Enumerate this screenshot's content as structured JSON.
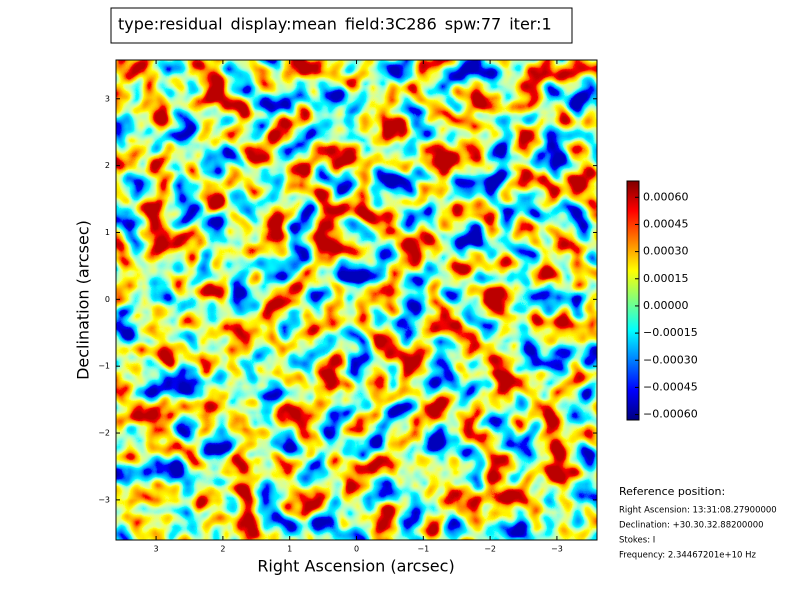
{
  "chart_data": {
    "type": "image",
    "title_parts": [
      {
        "text": "type:residual",
        "color": "#000000"
      },
      {
        "text": "display:mean",
        "color": "#ff0000"
      },
      {
        "text": "field:3C286",
        "color": "#000000"
      },
      {
        "text": "spw:77",
        "color": "#000000"
      },
      {
        "text": "iter:1",
        "color": "#000000"
      }
    ],
    "x_label": "Right Ascension (arcsec)",
    "y_label": "Declination (arcsec)",
    "xlim": [
      3.6,
      -3.6
    ],
    "xticks": [
      3,
      2,
      1,
      0,
      {
        "value": -1,
        "label": "−1"
      },
      {
        "value": -2,
        "label": "−2"
      },
      {
        "value": -3,
        "label": "−3"
      }
    ],
    "ylim": [
      -3.6,
      3.58
    ],
    "yticks": [
      {
        "value": -3,
        "label": "−3"
      },
      {
        "value": -2,
        "label": "−2"
      },
      {
        "value": -1,
        "label": "−1"
      },
      0,
      1,
      2,
      3
    ],
    "colorbar": {
      "clim": [
        -0.00063,
        0.00069
      ],
      "ticks": [
        {
          "value": 0.0006,
          "label": "0.00060"
        },
        {
          "value": 0.00045,
          "label": "0.00045"
        },
        {
          "value": 0.0003,
          "label": "0.00030"
        },
        {
          "value": 0.00015,
          "label": "0.00015"
        },
        {
          "value": 0,
          "label": "0.00000"
        },
        {
          "value": -0.00015,
          "label": "−0.00015"
        },
        {
          "value": -0.0003,
          "label": "−0.00030"
        },
        {
          "value": -0.00045,
          "label": "−0.00045"
        },
        {
          "value": -0.0006,
          "label": "−0.00060"
        }
      ]
    },
    "reference": {
      "heading": "Reference position:",
      "lines": [
        "Right Ascension: 13:31:08.27900000",
        "Declination: +30.30.32.88200000",
        "Stokes: I",
        "Frequency: 2.34467201e+10 Hz"
      ]
    }
  }
}
